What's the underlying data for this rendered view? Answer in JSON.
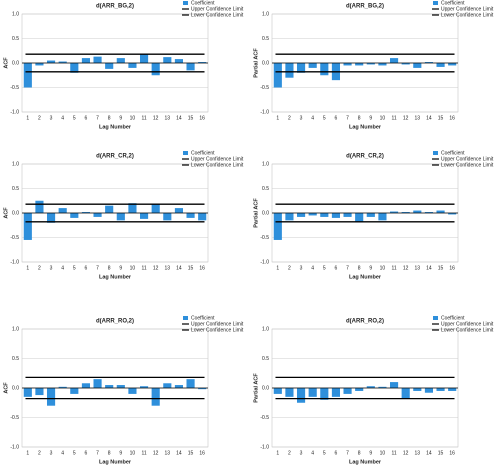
{
  "chart_data": [
    {
      "type": "bar",
      "title": "d(ARR_BG,2)",
      "y_label": "ACF",
      "x_label": "Lag Number",
      "categories": [
        1,
        2,
        3,
        4,
        5,
        6,
        7,
        8,
        9,
        10,
        11,
        12,
        13,
        14,
        15,
        16
      ],
      "series": [
        {
          "name": "Coefficient",
          "color": "#2e8fdb",
          "values": [
            -0.5,
            -0.05,
            0.05,
            0.03,
            -0.2,
            0.1,
            0.13,
            -0.12,
            0.1,
            -0.1,
            0.18,
            -0.25,
            0.12,
            0.08,
            -0.15,
            0.02
          ]
        }
      ],
      "limits": [
        {
          "name": "Upper Confidence Limit",
          "value": 0.18
        },
        {
          "name": "Lower Confidence Limit",
          "value": -0.18
        }
      ],
      "ylim": [
        -1,
        1
      ],
      "yticks": [
        {
          "value": -1,
          "label": "-1.0"
        },
        {
          "value": -0.5,
          "label": "-0.5"
        },
        {
          "value": 0,
          "label": "0.0"
        },
        {
          "value": 0.5,
          "label": "0.5"
        },
        {
          "value": 1,
          "label": "1.0"
        }
      ],
      "grid": true
    },
    {
      "type": "bar",
      "title": "d(ARR_BG,2)",
      "y_label": "Partial ACF",
      "x_label": "Lag Number",
      "categories": [
        1,
        2,
        3,
        4,
        5,
        6,
        7,
        8,
        9,
        10,
        11,
        12,
        13,
        14,
        15,
        16
      ],
      "series": [
        {
          "name": "Coefficient",
          "color": "#2e8fdb",
          "values": [
            -0.5,
            -0.3,
            -0.2,
            -0.1,
            -0.25,
            -0.35,
            -0.05,
            -0.05,
            -0.03,
            -0.05,
            0.1,
            -0.03,
            -0.1,
            0.02,
            -0.08,
            -0.05
          ]
        }
      ],
      "limits": [
        {
          "name": "Upper Confidence Limit",
          "value": 0.18
        },
        {
          "name": "Lower Confidence Limit",
          "value": -0.18
        }
      ],
      "ylim": [
        -1,
        1
      ],
      "yticks": [
        {
          "value": -1,
          "label": "-1.0"
        },
        {
          "value": -0.5,
          "label": "-0.5"
        },
        {
          "value": 0,
          "label": "0.0"
        },
        {
          "value": 0.5,
          "label": "0.5"
        },
        {
          "value": 1,
          "label": "1.0"
        }
      ],
      "grid": true
    },
    {
      "type": "bar",
      "title": "d(ARR_CR,2)",
      "y_label": "ACF",
      "x_label": "Lag Number",
      "categories": [
        1,
        2,
        3,
        4,
        5,
        6,
        7,
        8,
        9,
        10,
        11,
        12,
        13,
        14,
        15,
        16
      ],
      "series": [
        {
          "name": "Coefficient",
          "color": "#2e8fdb",
          "values": [
            -0.55,
            0.25,
            -0.2,
            0.1,
            -0.1,
            0.02,
            -0.08,
            0.15,
            -0.15,
            0.2,
            -0.12,
            0.18,
            -0.15,
            0.1,
            -0.1,
            -0.15
          ]
        }
      ],
      "limits": [
        {
          "name": "Upper Confidence Limit",
          "value": 0.18
        },
        {
          "name": "Lower Confidence Limit",
          "value": -0.18
        }
      ],
      "ylim": [
        -1,
        1
      ],
      "yticks": [
        {
          "value": -1,
          "label": "-1.0"
        },
        {
          "value": -0.5,
          "label": "-0.5"
        },
        {
          "value": 0,
          "label": "0.0"
        },
        {
          "value": 0.5,
          "label": "0.5"
        },
        {
          "value": 1,
          "label": "1.0"
        }
      ],
      "grid": true
    },
    {
      "type": "bar",
      "title": "d(ARR_CR,2)",
      "y_label": "Partial ACF",
      "x_label": "Lag Number",
      "categories": [
        1,
        2,
        3,
        4,
        5,
        6,
        7,
        8,
        9,
        10,
        11,
        12,
        13,
        14,
        15,
        16
      ],
      "series": [
        {
          "name": "Coefficient",
          "color": "#2e8fdb",
          "values": [
            -0.55,
            -0.15,
            -0.08,
            -0.05,
            -0.08,
            -0.1,
            -0.08,
            -0.18,
            -0.08,
            -0.15,
            0.03,
            0.02,
            0.05,
            0.02,
            0.05,
            -0.03
          ]
        }
      ],
      "limits": [
        {
          "name": "Upper Confidence Limit",
          "value": 0.18
        },
        {
          "name": "Lower Confidence Limit",
          "value": -0.18
        }
      ],
      "ylim": [
        -1,
        1
      ],
      "yticks": [
        {
          "value": -1,
          "label": "-1.0"
        },
        {
          "value": -0.5,
          "label": "-0.5"
        },
        {
          "value": 0,
          "label": "0.0"
        },
        {
          "value": 0.5,
          "label": "0.5"
        },
        {
          "value": 1,
          "label": "1.0"
        }
      ],
      "grid": true
    },
    {
      "type": "bar",
      "title": "d(ARR_RO,2)",
      "y_label": "ACF",
      "x_label": "Lag Number",
      "categories": [
        1,
        2,
        3,
        4,
        5,
        6,
        7,
        8,
        9,
        10,
        11,
        12,
        13,
        14,
        15,
        16
      ],
      "series": [
        {
          "name": "Coefficient",
          "color": "#2e8fdb",
          "values": [
            -0.15,
            -0.12,
            -0.3,
            0.02,
            -0.1,
            0.08,
            0.15,
            0.05,
            0.05,
            -0.1,
            0.03,
            -0.3,
            0.08,
            0.05,
            0.15,
            -0.02
          ]
        }
      ],
      "limits": [
        {
          "name": "Upper Confidence Limit",
          "value": 0.18
        },
        {
          "name": "Lower Confidence Limit",
          "value": -0.18
        }
      ],
      "ylim": [
        -1,
        1
      ],
      "yticks": [
        {
          "value": -1,
          "label": "-1.0"
        },
        {
          "value": -0.5,
          "label": "-0.5"
        },
        {
          "value": 0,
          "label": "0.0"
        },
        {
          "value": 0.5,
          "label": "0.5"
        },
        {
          "value": 1,
          "label": "1.0"
        }
      ],
      "grid": true
    },
    {
      "type": "bar",
      "title": "d(ARR_RO,2)",
      "y_label": "Partial ACF",
      "x_label": "Lag Number",
      "categories": [
        1,
        2,
        3,
        4,
        5,
        6,
        7,
        8,
        9,
        10,
        11,
        12,
        13,
        14,
        15,
        16
      ],
      "series": [
        {
          "name": "Coefficient",
          "color": "#2e8fdb",
          "values": [
            -0.1,
            -0.15,
            -0.25,
            -0.15,
            -0.2,
            -0.15,
            -0.1,
            -0.05,
            0.03,
            0.02,
            0.1,
            -0.18,
            -0.05,
            -0.08,
            -0.05,
            -0.05
          ]
        }
      ],
      "limits": [
        {
          "name": "Upper Confidence Limit",
          "value": 0.18
        },
        {
          "name": "Lower Confidence Limit",
          "value": -0.18
        }
      ],
      "ylim": [
        -1,
        1
      ],
      "yticks": [
        {
          "value": -1,
          "label": "-1.0"
        },
        {
          "value": -0.5,
          "label": "-0.5"
        },
        {
          "value": 0,
          "label": "0.0"
        },
        {
          "value": 0.5,
          "label": "0.5"
        },
        {
          "value": 1,
          "label": "1.0"
        }
      ],
      "grid": true
    }
  ]
}
